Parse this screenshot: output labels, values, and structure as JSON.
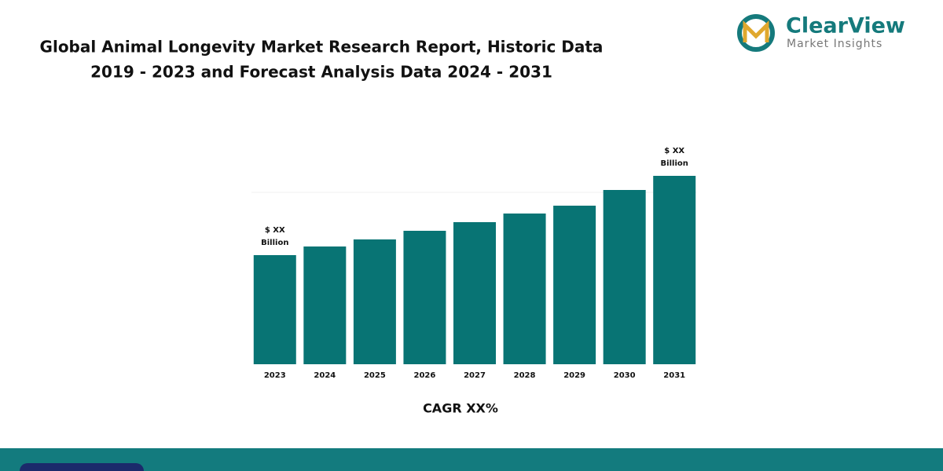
{
  "chart_data": {
    "type": "bar",
    "title": [
      "Global Animal Longevity Market Research Report, Historic Data",
      "2019 - 2023 and Forecast Analysis Data 2024 - 2031"
    ],
    "categories": [
      "2023",
      "2024",
      "2025",
      "2026",
      "2027",
      "2028",
      "2029",
      "2030",
      "2031"
    ],
    "values": [
      139,
      150,
      159,
      170,
      181,
      192,
      202,
      222,
      240
    ],
    "value_labels": [
      [
        "$ XX",
        "Billion"
      ],
      null,
      null,
      null,
      null,
      null,
      null,
      null,
      [
        "$ XX",
        "Billion"
      ]
    ],
    "color": "#087474",
    "ylim": [
      0,
      240
    ],
    "x_label": "CAGR XX%"
  },
  "logo": {
    "name": "ClearView",
    "tagline": "Market Insights"
  }
}
